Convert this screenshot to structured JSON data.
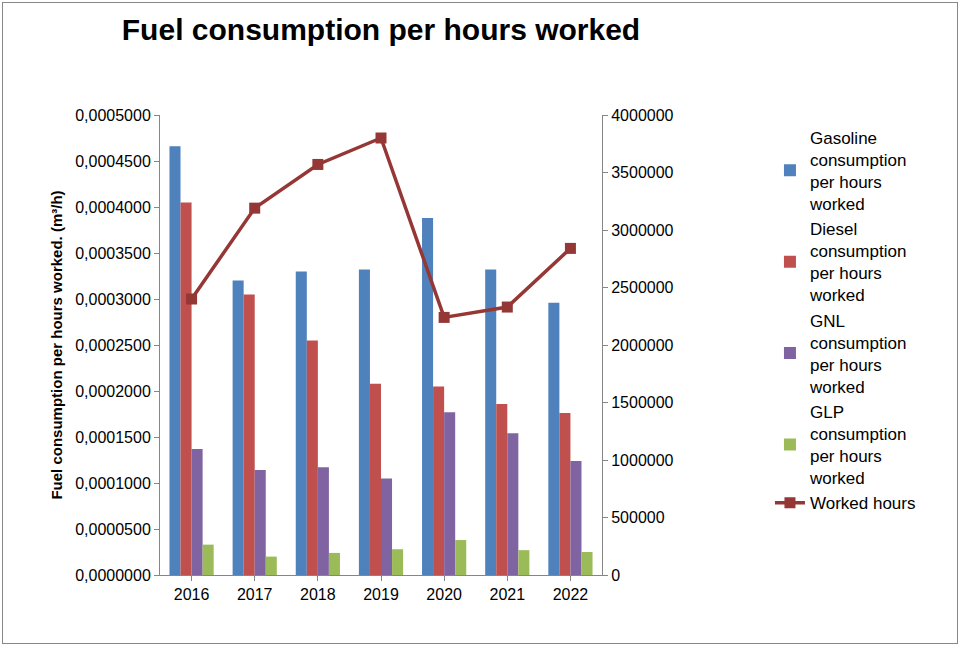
{
  "chart_data": {
    "type": "bar",
    "title": "Fuel consumption per hours worked",
    "y_label": "Fuel consumption per hours worked. (m³/h)",
    "categories": [
      "2016",
      "2017",
      "2018",
      "2019",
      "2020",
      "2021",
      "2022"
    ],
    "series": [
      {
        "name": "Gasoline consumption per hours worked",
        "type": "bar",
        "color": "#4F81BD",
        "values": [
          0.000466,
          0.00032,
          0.00033,
          0.000332,
          0.000388,
          0.000332,
          0.000296
        ]
      },
      {
        "name": "Diesel consumption per hours worked",
        "type": "bar",
        "color": "#C0504D",
        "values": [
          0.000405,
          0.000305,
          0.000255,
          0.000208,
          0.000205,
          0.000186,
          0.000176
        ]
      },
      {
        "name": "GNL consumption per hours worked",
        "type": "bar",
        "color": "#8064A2",
        "values": [
          0.000137,
          0.000114,
          0.000117,
          0.000105,
          0.000177,
          0.000154,
          0.000124
        ]
      },
      {
        "name": "GLP consumption per hours worked",
        "type": "bar",
        "color": "#9BBB59",
        "values": [
          3.3e-05,
          2e-05,
          2.4e-05,
          2.8e-05,
          3.8e-05,
          2.7e-05,
          2.5e-05
        ]
      },
      {
        "name": "Worked hours",
        "type": "line",
        "axis": "y2",
        "color": "#953735",
        "marker": "square",
        "values": [
          2400000,
          3190000,
          3570000,
          3800000,
          2240000,
          2330000,
          2840000
        ]
      }
    ],
    "ylim": [
      0,
      0.0005
    ],
    "yticks": [
      {
        "value": 0,
        "label": "0,0000000"
      },
      {
        "value": 5e-05,
        "label": "0,0000500"
      },
      {
        "value": 0.0001,
        "label": "0,0001000"
      },
      {
        "value": 0.00015,
        "label": "0,0001500"
      },
      {
        "value": 0.0002,
        "label": "0,0002000"
      },
      {
        "value": 0.00025,
        "label": "0,0002500"
      },
      {
        "value": 0.0003,
        "label": "0,0003000"
      },
      {
        "value": 0.00035,
        "label": "0,0003500"
      },
      {
        "value": 0.0004,
        "label": "0,0004000"
      },
      {
        "value": 0.00045,
        "label": "0,0004500"
      },
      {
        "value": 0.0005,
        "label": "0,0005000"
      }
    ],
    "y2lim": [
      0,
      4000000
    ],
    "y2ticks": [
      0,
      500000,
      1000000,
      1500000,
      2000000,
      2500000,
      3000000,
      3500000,
      4000000
    ],
    "grid": false,
    "legend": "right"
  }
}
